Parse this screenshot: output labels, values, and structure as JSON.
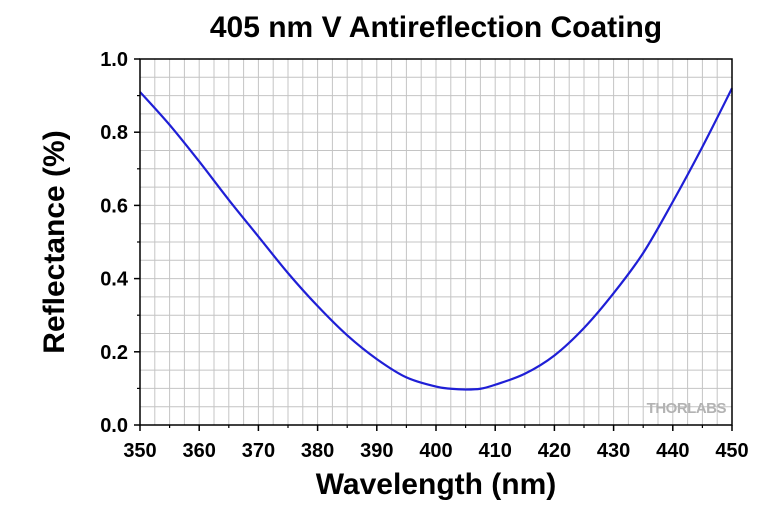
{
  "chart_data": {
    "type": "line",
    "title": "405 nm V Antireflection Coating",
    "xlabel": "Wavelength (nm)",
    "ylabel": "Reflectance (%)",
    "xlim": [
      350,
      450
    ],
    "ylim": [
      0.0,
      1.0
    ],
    "x_ticks": [
      "350",
      "360",
      "370",
      "380",
      "390",
      "400",
      "410",
      "420",
      "430",
      "440",
      "450"
    ],
    "y_ticks": [
      "0.0",
      "0.2",
      "0.4",
      "0.6",
      "0.8",
      "1.0"
    ],
    "grid": true,
    "series": [
      {
        "color": "#1f1fd6",
        "x": [
          350,
          355,
          360,
          365,
          370,
          375,
          380,
          385,
          390,
          395,
          400,
          402.5,
          405,
          407.5,
          410,
          415,
          420,
          425,
          430,
          435,
          440,
          445,
          450
        ],
        "y": [
          0.91,
          0.82,
          0.72,
          0.615,
          0.515,
          0.415,
          0.325,
          0.245,
          0.18,
          0.13,
          0.105,
          0.099,
          0.097,
          0.099,
          0.11,
          0.14,
          0.19,
          0.265,
          0.36,
          0.47,
          0.61,
          0.76,
          0.92
        ]
      }
    ],
    "watermark": "THORLABS"
  }
}
